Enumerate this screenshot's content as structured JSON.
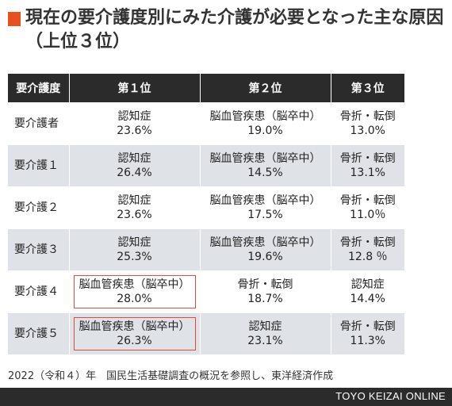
{
  "title": "現在の要介護度別にみた介護が必要となった主な原因（上位３位）",
  "accent_color": "#e8501e",
  "highlight_color": "#e24a3b",
  "table": {
    "headers": [
      "要介護度",
      "第１位",
      "第２位",
      "第３位"
    ],
    "rows": [
      {
        "level": "要介護者",
        "c1": {
          "name": "認知症",
          "pct": "23.6%"
        },
        "c2": {
          "name": "脳血管疾患（脳卒中）",
          "pct": "19.0%"
        },
        "c3": {
          "name": "骨折・転倒",
          "pct": "13.0%"
        }
      },
      {
        "level": "要介護１",
        "c1": {
          "name": "認知症",
          "pct": "26.4%"
        },
        "c2": {
          "name": "脳血管疾患（脳卒中）",
          "pct": "14.5%"
        },
        "c3": {
          "name": "骨折・転倒",
          "pct": "13.1%"
        }
      },
      {
        "level": "要介護２",
        "c1": {
          "name": "認知症",
          "pct": "23.6%"
        },
        "c2": {
          "name": "脳血管疾患（脳卒中）",
          "pct": "17.5%"
        },
        "c3": {
          "name": "骨折・転倒",
          "pct": "11.0％"
        }
      },
      {
        "level": "要介護３",
        "c1": {
          "name": "認知症",
          "pct": "25.3%"
        },
        "c2": {
          "name": "脳血管疾患（脳卒中）",
          "pct": "19.6%"
        },
        "c3": {
          "name": "骨折・転倒",
          "pct": "12.8 ％"
        }
      },
      {
        "level": "要介護４",
        "c1": {
          "name": "脳血管疾患（脳卒中）",
          "pct": "28.0%"
        },
        "c2": {
          "name": "骨折・転倒",
          "pct": "18.7%"
        },
        "c3": {
          "name": "認知症",
          "pct": "14.4%"
        }
      },
      {
        "level": "要介護５",
        "c1": {
          "name": "脳血管疾患（脳卒中）",
          "pct": "26.3%"
        },
        "c2": {
          "name": "認知症",
          "pct": "23.1%"
        },
        "c3": {
          "name": "骨折・転倒",
          "pct": "11.3%"
        }
      }
    ]
  },
  "source": "2022（令和４）年　国民生活基礎調査の概況を参照し、東洋経済作成",
  "brand": "TOYO KEIZAI ONLINE"
}
